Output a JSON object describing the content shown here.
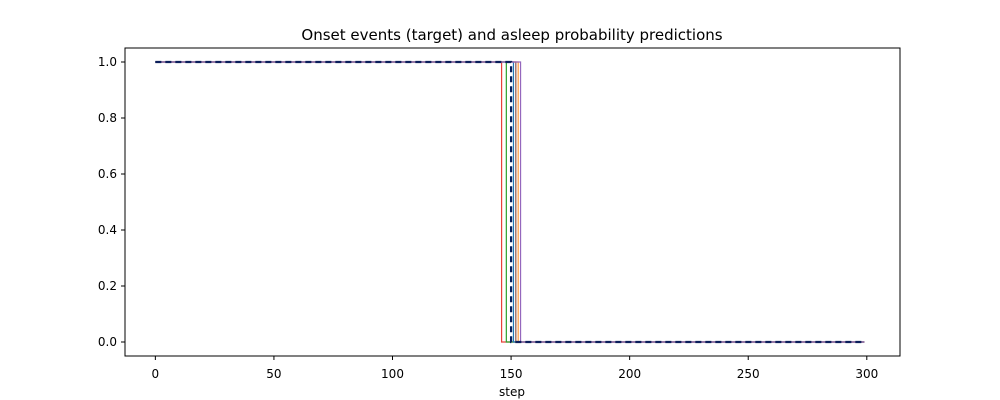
{
  "chart_data": {
    "type": "line",
    "title": "Onset events (target) and asleep probability predictions",
    "xlabel": "step",
    "ylabel": "",
    "xlim": [
      -12.8,
      314
    ],
    "ylim": [
      -0.05,
      1.05
    ],
    "x_ticks": [
      0,
      50,
      100,
      150,
      200,
      250,
      300
    ],
    "x_tick_labels": [
      "0",
      "50",
      "100",
      "150",
      "200",
      "250",
      "300"
    ],
    "y_ticks": [
      0.0,
      0.2,
      0.4,
      0.6,
      0.8,
      1.0
    ],
    "y_tick_labels": [
      "0.0",
      "0.2",
      "0.4",
      "0.6",
      "0.8",
      "1.0"
    ],
    "grid": false,
    "series": [
      {
        "color": "#e8403a",
        "width": 1.2,
        "dash": "",
        "points": [
          [
            0,
            1
          ],
          [
            146,
            1
          ],
          [
            146,
            0
          ],
          [
            299,
            0
          ]
        ]
      },
      {
        "color": "#ff9a3a",
        "width": 1.2,
        "dash": "",
        "points": [
          [
            0,
            1
          ],
          [
            153,
            1
          ],
          [
            153,
            0
          ],
          [
            299,
            0
          ]
        ]
      },
      {
        "color": "#2ca02c",
        "width": 1.2,
        "dash": "",
        "points": [
          [
            0,
            1
          ],
          [
            148,
            1
          ],
          [
            148,
            0
          ],
          [
            299,
            0
          ]
        ]
      },
      {
        "color": "#1f77b4",
        "width": 1.2,
        "dash": "",
        "points": [
          [
            0,
            1
          ],
          [
            151,
            1
          ],
          [
            151,
            0
          ],
          [
            299,
            0
          ]
        ]
      },
      {
        "color": "#8c564b",
        "width": 1.2,
        "dash": "",
        "points": [
          [
            0,
            1
          ],
          [
            152,
            1
          ],
          [
            152,
            0
          ],
          [
            299,
            0
          ]
        ]
      },
      {
        "color": "#9467bd",
        "width": 1.2,
        "dash": "",
        "points": [
          [
            0,
            1
          ],
          [
            154,
            1
          ],
          [
            154,
            0
          ],
          [
            299,
            0
          ]
        ]
      },
      {
        "color": "#0b1f5c",
        "width": 2.2,
        "dash": "6,4",
        "points": [
          [
            0,
            1
          ],
          [
            150,
            1
          ],
          [
            150,
            0
          ],
          [
            299,
            0
          ]
        ]
      }
    ]
  }
}
